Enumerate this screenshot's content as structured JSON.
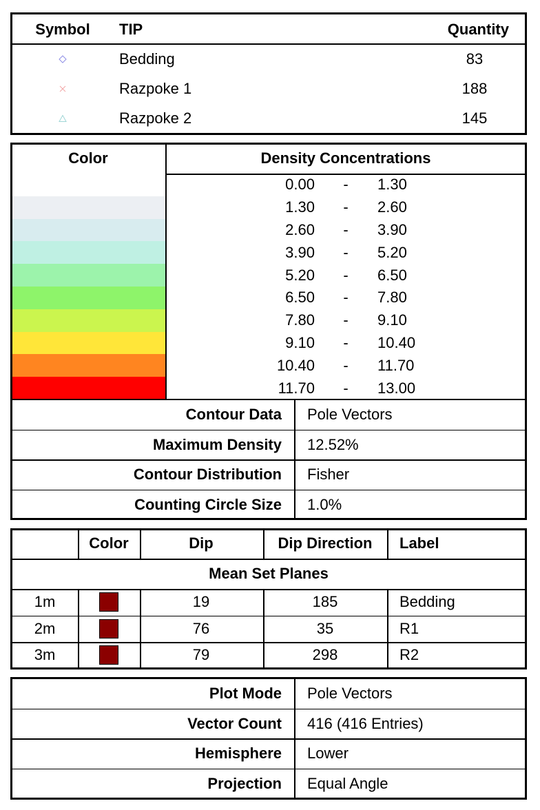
{
  "symbols_table": {
    "headers": [
      "Symbol",
      "TIP",
      "Quantity"
    ],
    "rows": [
      {
        "symbol": "diamond",
        "color": "#8f8fe6",
        "tip": "Bedding",
        "quantity": 83
      },
      {
        "symbol": "cross",
        "color": "#f2a6a6",
        "tip": "Razpoke 1",
        "quantity": 188
      },
      {
        "symbol": "triangle",
        "color": "#9fd6d6",
        "tip": "Razpoke 2",
        "quantity": 145
      }
    ]
  },
  "density_table": {
    "headers": [
      "Color",
      "Density Concentrations"
    ],
    "separator": "-",
    "rows": [
      {
        "color": "#ffffff",
        "from": "0.00",
        "to": "1.30"
      },
      {
        "color": "#eceff3",
        "from": "1.30",
        "to": "2.60"
      },
      {
        "color": "#d8ecef",
        "from": "2.60",
        "to": "3.90"
      },
      {
        "color": "#bff0e3",
        "from": "3.90",
        "to": "5.20"
      },
      {
        "color": "#9cf3ab",
        "from": "5.20",
        "to": "6.50"
      },
      {
        "color": "#8ef46a",
        "from": "6.50",
        "to": "7.80"
      },
      {
        "color": "#cbf54e",
        "from": "7.80",
        "to": "9.10"
      },
      {
        "color": "#ffe639",
        "from": "9.10",
        "to": "10.40"
      },
      {
        "color": "#ff8520",
        "from": "10.40",
        "to": "11.70"
      },
      {
        "color": "#ff0000",
        "from": "11.70",
        "to": "13.00"
      }
    ]
  },
  "contour_info": [
    {
      "label": "Contour Data",
      "value": "Pole Vectors"
    },
    {
      "label": "Maximum Density",
      "value": "12.52%"
    },
    {
      "label": "Contour Distribution",
      "value": "Fisher"
    },
    {
      "label": "Counting Circle Size",
      "value": "1.0%"
    }
  ],
  "mean_set_planes": {
    "headers": [
      "Color",
      "Dip",
      "Dip Direction",
      "Label"
    ],
    "title": "Mean Set Planes",
    "rows": [
      {
        "id": "1m",
        "color": "#8b0000",
        "dip": 19,
        "dip_direction": 185,
        "label": "Bedding"
      },
      {
        "id": "2m",
        "color": "#8b0000",
        "dip": 76,
        "dip_direction": 35,
        "label": "R1"
      },
      {
        "id": "3m",
        "color": "#8b0000",
        "dip": 79,
        "dip_direction": 298,
        "label": "R2"
      }
    ]
  },
  "plot_info": [
    {
      "label": "Plot Mode",
      "value": "Pole Vectors"
    },
    {
      "label": "Vector Count",
      "value": "416 (416 Entries)"
    },
    {
      "label": "Hemisphere",
      "value": "Lower"
    },
    {
      "label": "Projection",
      "value": "Equal Angle"
    }
  ]
}
